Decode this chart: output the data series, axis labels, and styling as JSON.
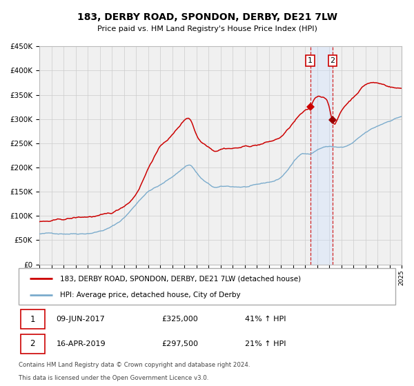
{
  "title": "183, DERBY ROAD, SPONDON, DERBY, DE21 7LW",
  "subtitle": "Price paid vs. HM Land Registry's House Price Index (HPI)",
  "legend_line1": "183, DERBY ROAD, SPONDON, DERBY, DE21 7LW (detached house)",
  "legend_line2": "HPI: Average price, detached house, City of Derby",
  "transaction1_date": "09-JUN-2017",
  "transaction1_price": "£325,000",
  "transaction1_hpi": "41% ↑ HPI",
  "transaction1_year": 2017.44,
  "transaction1_value": 325000,
  "transaction2_date": "16-APR-2019",
  "transaction2_price": "£297,500",
  "transaction2_hpi": "21% ↑ HPI",
  "transaction2_year": 2019.29,
  "transaction2_value": 297500,
  "footer_line1": "Contains HM Land Registry data © Crown copyright and database right 2024.",
  "footer_line2": "This data is licensed under the Open Government Licence v3.0.",
  "red_color": "#cc0000",
  "blue_color": "#7aabcc",
  "bg_color": "#f0f0f0",
  "grid_color": "#cccccc",
  "highlight_fill": "#cce0ff",
  "xmin": 1995,
  "xmax": 2025,
  "ymin": 0,
  "ymax": 450000,
  "hpi_anchors_x": [
    1995,
    1996,
    1997,
    1998,
    1999,
    2000,
    2001,
    2002,
    2003,
    2004,
    2005,
    2006,
    2007,
    2007.5,
    2008,
    2009,
    2009.5,
    2010,
    2011,
    2012,
    2013,
    2014,
    2015,
    2016,
    2017,
    2017.44,
    2018,
    2019,
    2019.29,
    2020,
    2021,
    2022,
    2023,
    2024,
    2025
  ],
  "hpi_anchors_y": [
    63000,
    63500,
    64500,
    66000,
    68000,
    73000,
    82000,
    100000,
    128000,
    155000,
    168000,
    185000,
    205000,
    210000,
    195000,
    170000,
    163000,
    163000,
    163000,
    163000,
    165000,
    170000,
    180000,
    210000,
    230000,
    230000,
    238000,
    245000,
    245000,
    243000,
    252000,
    270000,
    283000,
    295000,
    305000
  ],
  "prop_anchors_x": [
    1995,
    1996,
    1997,
    1998,
    1999,
    2000,
    2001,
    2002,
    2003,
    2004,
    2005,
    2006,
    2007,
    2007.5,
    2008,
    2009,
    2009.5,
    2010,
    2011,
    2012,
    2013,
    2014,
    2015,
    2016,
    2017.0,
    2017.44,
    2017.8,
    2018.3,
    2018.6,
    2019.0,
    2019.29,
    2019.8,
    2020,
    2021,
    2022,
    2023,
    2024,
    2025
  ],
  "prop_anchors_y": [
    88000,
    88000,
    90000,
    93000,
    95000,
    97000,
    100000,
    115000,
    142000,
    195000,
    240000,
    265000,
    295000,
    298000,
    268000,
    245000,
    238000,
    242000,
    245000,
    248000,
    252000,
    258000,
    268000,
    295000,
    318000,
    325000,
    342000,
    348000,
    346000,
    330000,
    297500,
    308000,
    318000,
    348000,
    375000,
    378000,
    372000,
    368000
  ]
}
